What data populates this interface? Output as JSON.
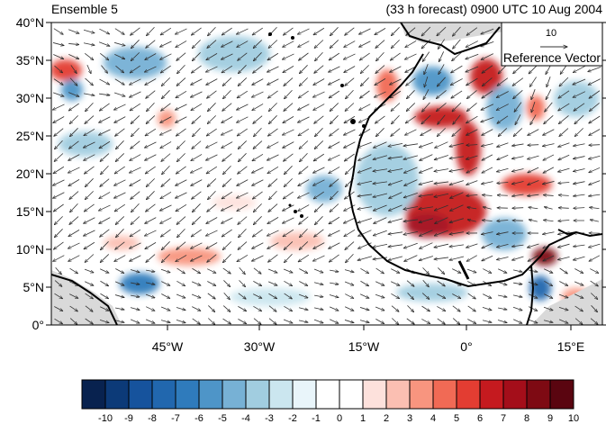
{
  "header": {
    "left_title": "Ensemble 5",
    "right_title": "(33 h forecast) 0900 UTC 10 Aug 2004"
  },
  "map": {
    "lat_ticks": [
      "0°",
      "5°N",
      "10°N",
      "15°N",
      "20°N",
      "25°N",
      "30°N",
      "35°N",
      "40°N"
    ],
    "lon_ticks": [
      "45°W",
      "30°W",
      "15°W",
      "0°",
      "15°E"
    ],
    "reference_vector": {
      "magnitude": "10",
      "label": "Reference Vector"
    }
  },
  "colorbar": {
    "labels": [
      "-10",
      "-9",
      "-8",
      "-7",
      "-6",
      "-5",
      "-4",
      "-3",
      "-2",
      "-1",
      "0",
      "1",
      "2",
      "3",
      "4",
      "5",
      "6",
      "7",
      "8",
      "9",
      "10"
    ],
    "colors": [
      "#08224f",
      "#0c3a78",
      "#16539d",
      "#2167ae",
      "#2f7bbc",
      "#4e95c8",
      "#77b1d5",
      "#a1cde0",
      "#cbe6ef",
      "#e9f5fa",
      "#ffffff",
      "#ffffff",
      "#fde1dc",
      "#fbbfb2",
      "#f8957f",
      "#f16a55",
      "#e33d32",
      "#c51a1f",
      "#a40e1a",
      "#7e0a13",
      "#5a0510"
    ]
  }
}
